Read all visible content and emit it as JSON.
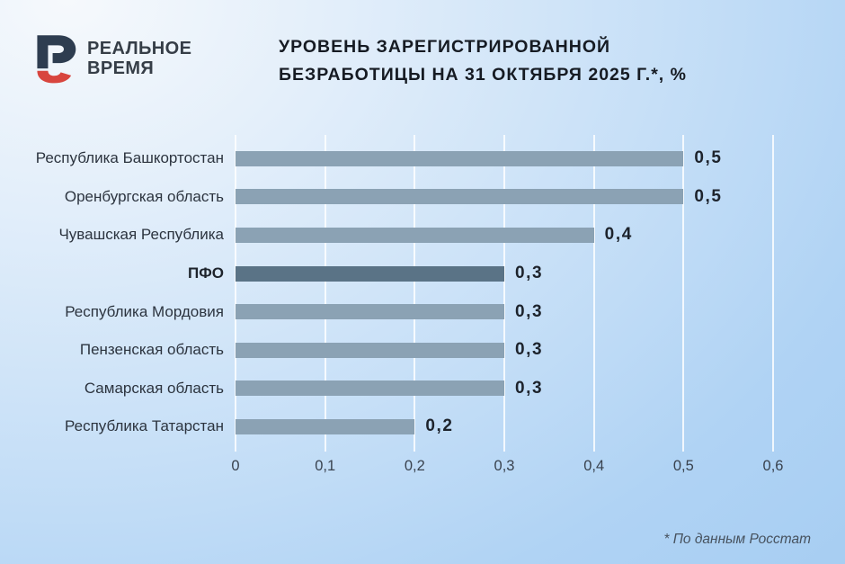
{
  "logo": {
    "line1": "РЕАЛЬНОЕ",
    "line2": "ВРЕМЯ",
    "mark_navy": "#2e3d50",
    "mark_red": "#d8453e"
  },
  "title": {
    "line1": "УРОВЕНЬ ЗАРЕГИСТРИРОВАННОЙ",
    "line2": "БЕЗРАБОТИЦЫ НА 31 ОКТЯБРЯ 2025 Г.*, %"
  },
  "footnote": "* По данным Росстат",
  "chart_data": {
    "type": "bar",
    "orientation": "horizontal",
    "title": "УРОВЕНЬ ЗАРЕГИСТРИРОВАННОЙ БЕЗРАБОТИЦЫ НА 31 ОКТЯБРЯ 2025 Г.*, %",
    "unit": "%",
    "categories": [
      "Республика Башкортостан",
      "Оренбургская область",
      "Чувашская Республика",
      "ПФО",
      "Республика Мордовия",
      "Пензенская область",
      "Самарская область",
      "Республика Татарстан"
    ],
    "values": [
      0.5,
      0.5,
      0.4,
      0.3,
      0.3,
      0.3,
      0.3,
      0.2
    ],
    "value_labels": [
      "0,5",
      "0,5",
      "0,4",
      "0,3",
      "0,3",
      "0,3",
      "0,3",
      "0,2"
    ],
    "highlight_index": 3,
    "highlight_category": "ПФО",
    "xlim": [
      0,
      0.6
    ],
    "x_tick_values": [
      0,
      0.1,
      0.2,
      0.3,
      0.4,
      0.5,
      0.6
    ],
    "x_ticks": [
      "0",
      "0,1",
      "0,2",
      "0,3",
      "0,4",
      "0,5",
      "0,6"
    ],
    "grid": true,
    "legend": "none",
    "bar_color": "#8BA2B4",
    "highlight_bar_color": "#5A7386",
    "gridline_color": "rgba(255,255,255,0.82)"
  }
}
